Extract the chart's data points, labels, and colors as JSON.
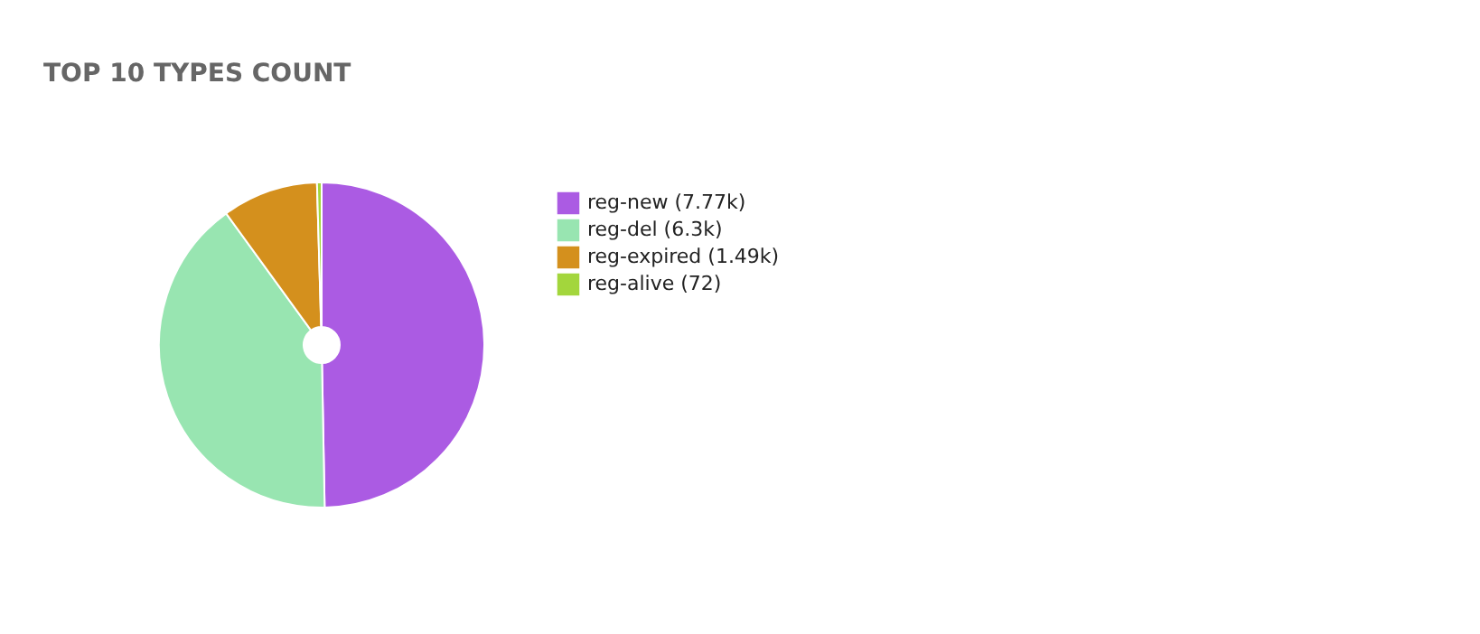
{
  "chart_data": {
    "type": "pie",
    "title": "TOP 10 TYPES COUNT",
    "categories": [
      "reg-new (7.77k)",
      "reg-del (6.3k)",
      "reg-expired (1.49k)",
      "reg-alive (72)"
    ],
    "values": [
      7770,
      6300,
      1490,
      72
    ],
    "colors": [
      "#ab5be3",
      "#98e5b1",
      "#d4901d",
      "#a3d63c"
    ],
    "legend": "right"
  }
}
